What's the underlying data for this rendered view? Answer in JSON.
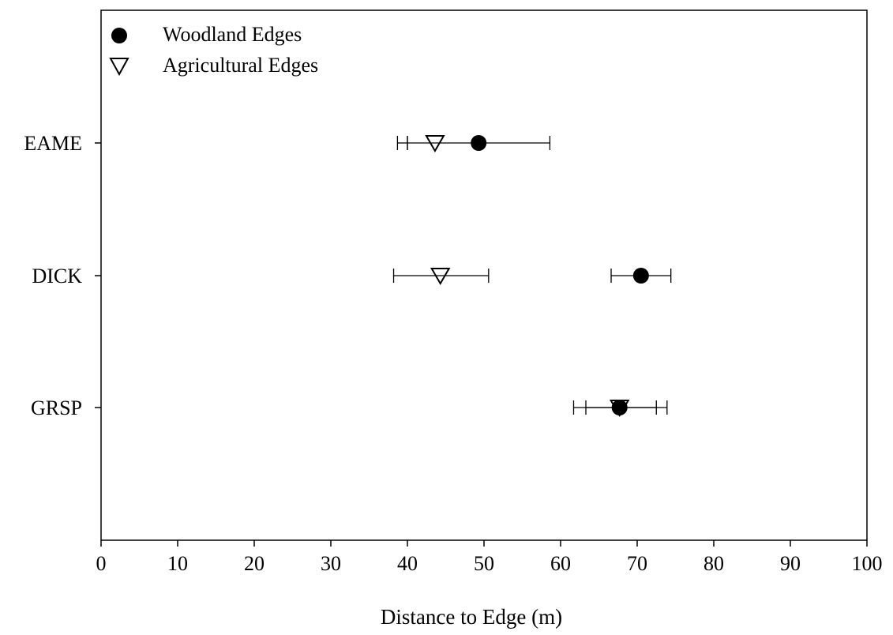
{
  "chart_data": {
    "type": "scatter",
    "title": "",
    "xlabel": "Distance to Edge (m)",
    "ylabel": "",
    "xlim": [
      0,
      100
    ],
    "xticks": [
      0,
      10,
      20,
      30,
      40,
      50,
      60,
      70,
      80,
      90,
      100
    ],
    "categories": [
      "EAME",
      "DICK",
      "GRSP"
    ],
    "grid": false,
    "legend_position": "top-left",
    "series": [
      {
        "name": "Woodland Edges",
        "marker": "filled-circle",
        "color": "#000000",
        "points": [
          {
            "category": "EAME",
            "x": 49.3,
            "err_low": 40.0,
            "err_high": 58.6
          },
          {
            "category": "DICK",
            "x": 70.5,
            "err_low": 66.6,
            "err_high": 74.4
          },
          {
            "category": "GRSP",
            "x": 67.7,
            "err_low": 63.3,
            "err_high": 72.5
          }
        ]
      },
      {
        "name": "Agricultural Edges",
        "marker": "open-down-triangle",
        "color": "#000000",
        "points": [
          {
            "category": "EAME",
            "x": 43.6,
            "err_low": 38.7,
            "err_high": 40.0
          },
          {
            "category": "DICK",
            "x": 44.3,
            "err_low": 38.2,
            "err_high": 50.6
          },
          {
            "category": "GRSP",
            "x": 67.7,
            "err_low": 61.7,
            "err_high": 73.9
          }
        ]
      }
    ]
  }
}
